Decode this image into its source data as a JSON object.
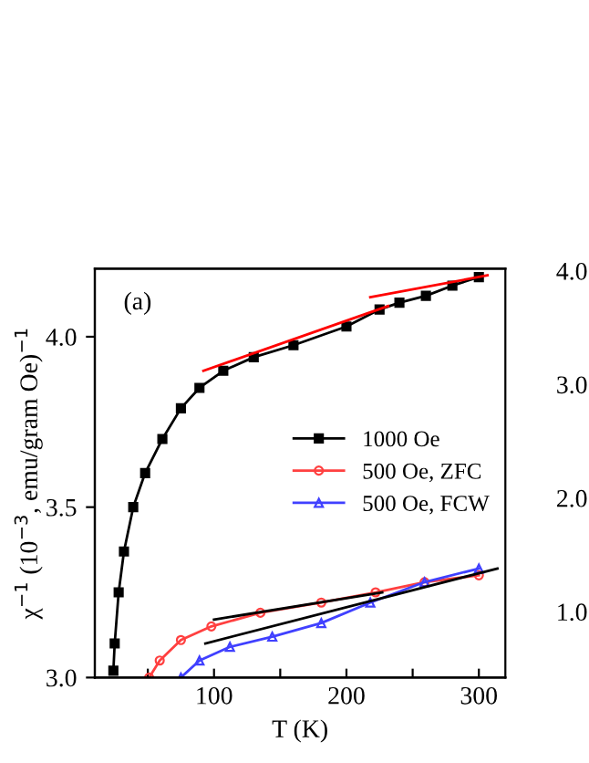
{
  "chart_data": [
    {
      "type": "line",
      "xlabel": "T (K)",
      "ylabel": "χ$^{−1}$ (10$^{−3}$, emu/gram Oe)$^{−1}$",
      "annotations": [
        "(a)"
      ],
      "xlim": [
        10,
        320
      ],
      "xticks": [
        {
          "value": 50,
          "label": null
        },
        100,
        {
          "value": 150,
          "label": null
        },
        200,
        {
          "value": 250,
          "label": null
        },
        300
      ],
      "y2lim": [
        0.42,
        4.02
      ],
      "y2ticks": [
        {
          "value": 1,
          "label": "1.0"
        },
        {
          "value": 2,
          "label": "2.0"
        },
        {
          "value": 3,
          "label": "3.0"
        },
        {
          "value": 4,
          "label": "4.0"
        }
      ],
      "ylim": [
        3.0,
        4.2
      ],
      "yticks": [
        {
          "value": 3.0,
          "label": "3.0"
        },
        {
          "value": 3.5,
          "label": "3.5"
        },
        {
          "value": 4.0,
          "label": "4.0"
        }
      ],
      "grid": false,
      "legend": "center right",
      "series": [
        {
          "name": "1000 Oe",
          "color": "#000000",
          "marker": "square",
          "x": [
            24,
            25,
            28,
            32,
            39,
            48,
            61,
            75,
            89,
            107,
            130,
            160,
            200,
            225,
            240,
            260,
            280,
            300
          ],
          "values": [
            3.02,
            3.1,
            3.25,
            3.37,
            3.5,
            3.6,
            3.7,
            3.79,
            3.85,
            3.9,
            3.94,
            3.975,
            4.03,
            4.08,
            4.1,
            4.12,
            4.15,
            4.175
          ]
        },
        {
          "name": "500 Oe, ZFC",
          "color": "#ff4040",
          "marker": "circle",
          "x": [
            51,
            59,
            75,
            98,
            135,
            181,
            222,
            259,
            300
          ],
          "values": [
            3.0,
            3.05,
            3.11,
            3.15,
            3.19,
            3.22,
            3.25,
            3.28,
            3.3
          ]
        },
        {
          "name": "500 Oe, FCW",
          "color": "#4040ff",
          "marker": "triangle",
          "x": [
            75,
            89,
            112,
            144,
            181,
            218,
            259,
            300
          ],
          "values": [
            3.0,
            3.05,
            3.09,
            3.12,
            3.16,
            3.22,
            3.28,
            3.32
          ]
        },
        {
          "color": "#ff0000",
          "marker": "none",
          "x": [
            92,
            231.5
          ],
          "values": [
            3.9,
            4.09
          ]
        },
        {
          "color": "#ff0000",
          "marker": "none",
          "x": [
            218,
            306.5
          ],
          "values": [
            4.116,
            4.18
          ]
        },
        {
          "color": "#000000",
          "marker": "none",
          "x": [
            100,
            227
          ],
          "values": [
            3.17,
            3.25
          ]
        },
        {
          "color": "#000000",
          "marker": "none",
          "x": [
            93.5,
            314
          ],
          "values": [
            3.1,
            3.32
          ]
        }
      ]
    }
  ]
}
